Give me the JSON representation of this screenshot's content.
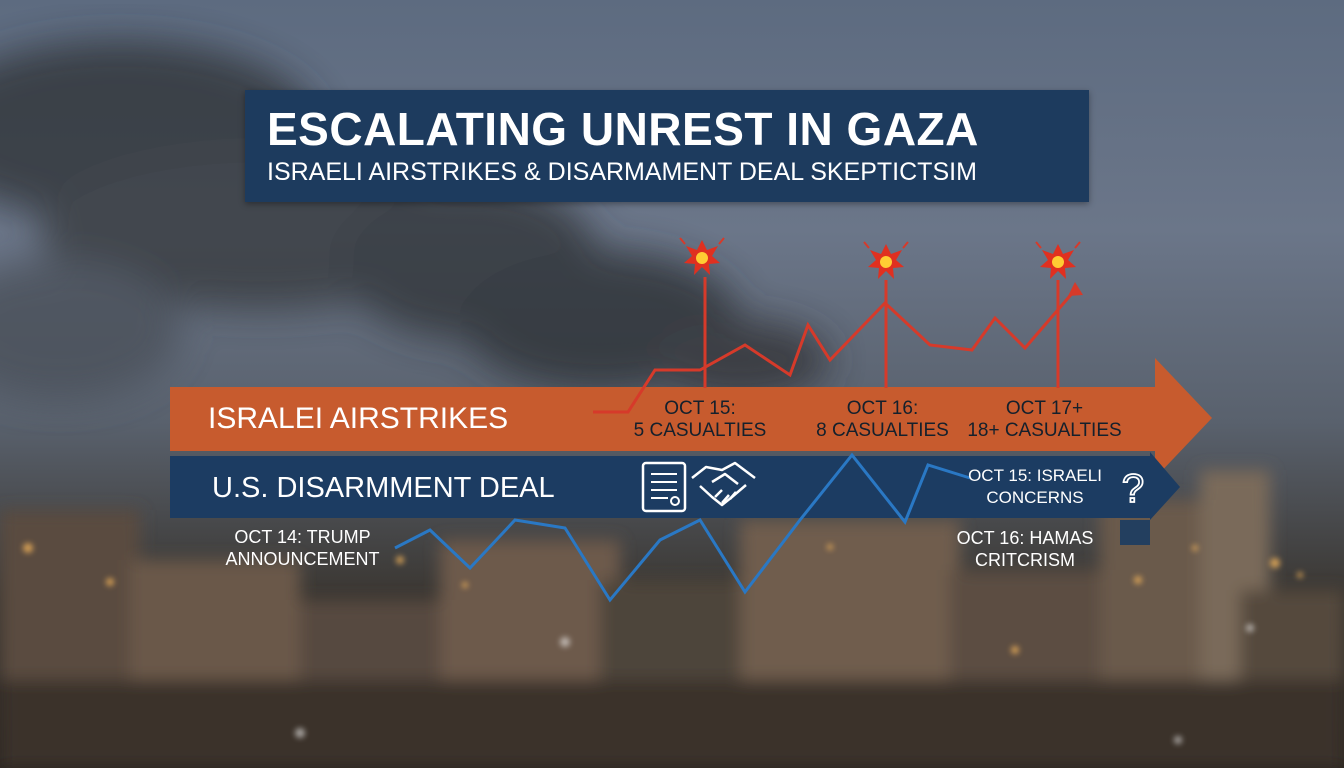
{
  "banner": {
    "title": "ESCALATING UNREST IN GAZA",
    "subtitle": "ISRAELI AIRSTRIKES & DISARMAMENT DEAL SKEPTICTSIM"
  },
  "airstrikes": {
    "label": "ISRALEI AIRSTRIKES",
    "events": [
      {
        "date": "OCT 15:",
        "detail": "5 CASUALTIES"
      },
      {
        "date": "OCT 16:",
        "detail": "8 CASUALTIES"
      },
      {
        "date": "OCT 17+",
        "detail": "18+ CASUALTIES"
      }
    ]
  },
  "deal": {
    "label": "U.S. DISARMMENT DEAL",
    "announcement": {
      "line1": "OCT 14: TRUMP",
      "line2": "ANNOUNCEMENT"
    },
    "concerns": {
      "line1": "OCT 15: ISRAELI",
      "line2": "CONCERNS"
    },
    "criticism": {
      "line1": "OCT 16: HAMAS",
      "line2": "CRITCRISM"
    }
  },
  "icons": [
    "explosion-icon",
    "document-icon",
    "handshake-icon",
    "question-mark-icon"
  ],
  "colors": {
    "banner": "#1d3b5e",
    "airstrikes_band": "#c75b2e",
    "deal_band": "#1c3c62",
    "airstrikes_line": "#d63a2a",
    "deal_line": "#2a78c4"
  }
}
